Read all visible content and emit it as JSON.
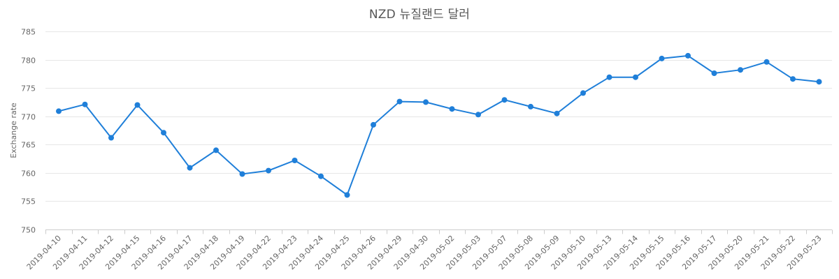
{
  "chart_data": {
    "type": "line",
    "title": "NZD 뉴질랜드 달러",
    "xlabel": "",
    "ylabel": "Exchange rate",
    "ylim": [
      750,
      785
    ],
    "yticks": [
      750,
      755,
      760,
      765,
      770,
      775,
      780,
      785
    ],
    "grid": true,
    "colors": {
      "series": "#1f7fd9"
    },
    "x": [
      "2019-04-10",
      "2019-04-11",
      "2019-04-12",
      "2019-04-15",
      "2019-04-16",
      "2019-04-17",
      "2019-04-18",
      "2019-04-19",
      "2019-04-22",
      "2019-04-23",
      "2019-04-24",
      "2019-04-25",
      "2019-04-26",
      "2019-04-29",
      "2019-04-30",
      "2019-05-02",
      "2019-05-03",
      "2019-05-07",
      "2019-05-08",
      "2019-05-09",
      "2019-05-10",
      "2019-05-13",
      "2019-05-14",
      "2019-05-15",
      "2019-05-16",
      "2019-05-17",
      "2019-05-20",
      "2019-05-21",
      "2019-05-22",
      "2019-05-23"
    ],
    "series": [
      {
        "values": [
          770.9,
          772.1,
          766.2,
          772.0,
          767.1,
          760.9,
          764.0,
          759.8,
          760.4,
          762.2,
          759.4,
          756.1,
          768.5,
          772.6,
          772.5,
          771.3,
          770.3,
          772.9,
          771.7,
          770.5,
          774.1,
          776.9,
          776.9,
          780.2,
          780.7,
          777.6,
          778.2,
          779.6,
          776.6,
          776.1
        ]
      }
    ]
  }
}
